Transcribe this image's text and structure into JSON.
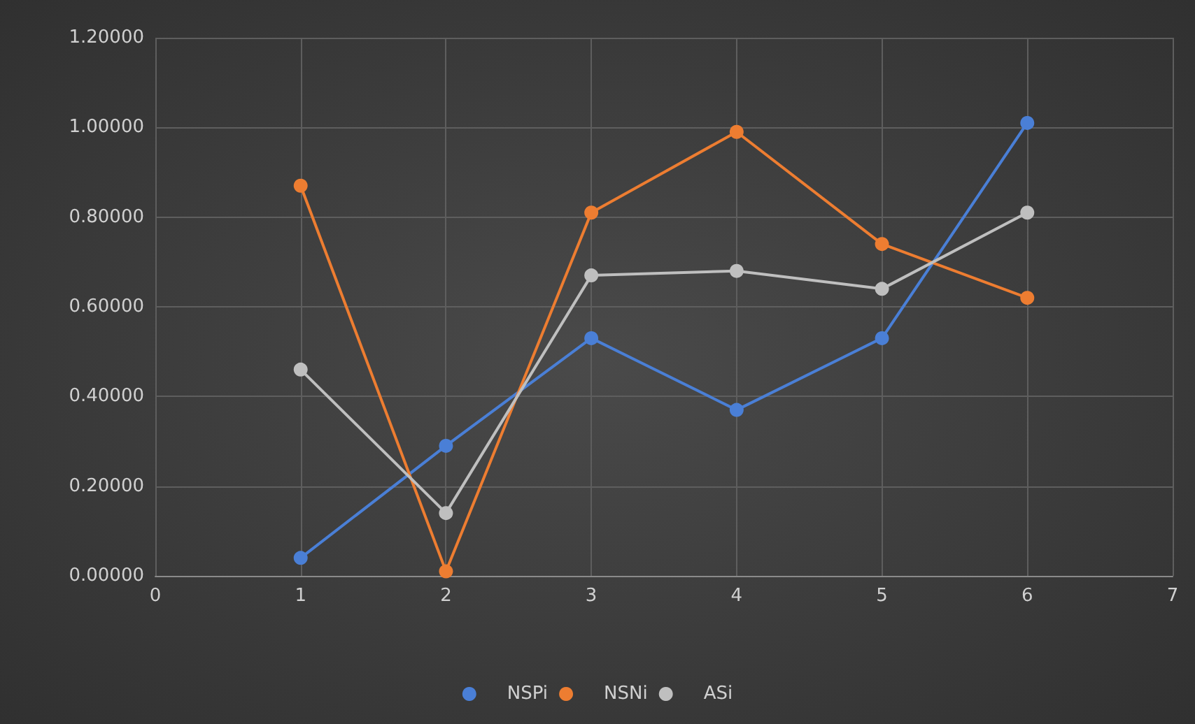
{
  "chart_data": {
    "type": "line",
    "x": [
      1,
      2,
      3,
      4,
      5,
      6
    ],
    "series": [
      {
        "name": "NSPi",
        "color": "#4a7fd6",
        "values": [
          0.04,
          0.29,
          0.53,
          0.37,
          0.53,
          1.01
        ]
      },
      {
        "name": "NSNi",
        "color": "#ed7d31",
        "values": [
          0.87,
          0.01,
          0.81,
          0.99,
          0.74,
          0.62
        ]
      },
      {
        "name": "ASi",
        "color": "#bfbfbf",
        "values": [
          0.46,
          0.14,
          0.67,
          0.68,
          0.64,
          0.81
        ]
      }
    ],
    "xlim": [
      0,
      7
    ],
    "xticks": [
      0,
      1,
      2,
      3,
      4,
      5,
      6,
      7
    ],
    "ylim": [
      0,
      1.2
    ],
    "yticks": [
      {
        "value": 0,
        "label": "0.00000"
      },
      {
        "value": 0.2,
        "label": "0.20000"
      },
      {
        "value": 0.4,
        "label": "0.40000"
      },
      {
        "value": 0.6,
        "label": "0.60000"
      },
      {
        "value": 0.8,
        "label": "0.80000"
      },
      {
        "value": 1,
        "label": "1.00000"
      },
      {
        "value": 1.2,
        "label": "1.20000"
      }
    ],
    "grid": true,
    "legend": "bottom",
    "marker": "circle",
    "line_style": "solid"
  }
}
